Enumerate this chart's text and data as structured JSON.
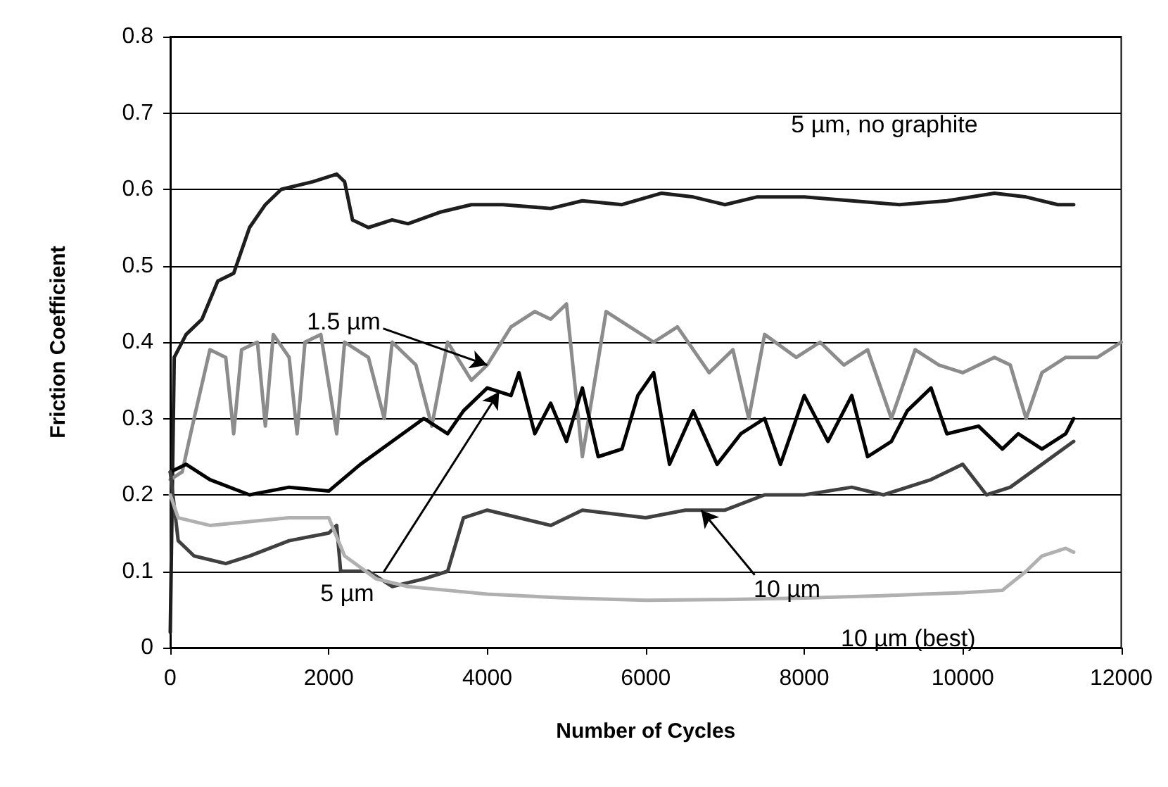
{
  "chart_data": {
    "type": "line",
    "xlabel": "Number of Cycles",
    "ylabel": "Friction Coefficient",
    "xlim": [
      0,
      12000
    ],
    "xticks": [
      0,
      2000,
      4000,
      6000,
      8000,
      10000,
      12000
    ],
    "ylim": [
      0,
      0.8
    ],
    "yticks": [
      0,
      0.1,
      0.2,
      0.3,
      0.4,
      0.5,
      0.6,
      0.7,
      0.8
    ],
    "grid": "y",
    "marker": "none",
    "line_style": "solid",
    "series": [
      {
        "color": "#1e1e1e",
        "x": [
          0,
          50,
          200,
          400,
          600,
          800,
          1000,
          1200,
          1400,
          1800,
          2100,
          2200,
          2300,
          2500,
          2800,
          3000,
          3400,
          3800,
          4200,
          4800,
          5200,
          5700,
          6200,
          6600,
          7000,
          7400,
          8000,
          8600,
          9200,
          9800,
          10400,
          10800,
          11200,
          11400
        ],
        "values": [
          0.02,
          0.38,
          0.41,
          0.43,
          0.48,
          0.49,
          0.55,
          0.58,
          0.6,
          0.61,
          0.62,
          0.61,
          0.56,
          0.55,
          0.56,
          0.555,
          0.57,
          0.58,
          0.58,
          0.575,
          0.585,
          0.58,
          0.595,
          0.59,
          0.58,
          0.59,
          0.59,
          0.585,
          0.58,
          0.585,
          0.595,
          0.59,
          0.58,
          0.58
        ]
      },
      {
        "color": "#8c8c8c",
        "x": [
          0,
          150,
          300,
          500,
          700,
          800,
          900,
          1100,
          1200,
          1300,
          1500,
          1600,
          1700,
          1900,
          2100,
          2200,
          2500,
          2700,
          2800,
          3100,
          3300,
          3500,
          3800,
          4000,
          4300,
          4600,
          4800,
          5000,
          5200,
          5500,
          5800,
          6100,
          6400,
          6800,
          7100,
          7300,
          7500,
          7900,
          8200,
          8500,
          8800,
          9100,
          9400,
          9700,
          10000,
          10400,
          10600,
          10800,
          11000,
          11300,
          11700,
          12000
        ],
        "values": [
          0.22,
          0.23,
          0.3,
          0.39,
          0.38,
          0.28,
          0.39,
          0.4,
          0.29,
          0.41,
          0.38,
          0.28,
          0.4,
          0.41,
          0.28,
          0.4,
          0.38,
          0.3,
          0.4,
          0.37,
          0.29,
          0.4,
          0.35,
          0.37,
          0.42,
          0.44,
          0.43,
          0.45,
          0.25,
          0.44,
          0.42,
          0.4,
          0.42,
          0.36,
          0.39,
          0.3,
          0.41,
          0.38,
          0.4,
          0.37,
          0.39,
          0.3,
          0.39,
          0.37,
          0.36,
          0.38,
          0.37,
          0.3,
          0.36,
          0.38,
          0.38,
          0.4
        ]
      },
      {
        "color": "#000000",
        "x": [
          0,
          200,
          500,
          1000,
          1500,
          2000,
          2400,
          2800,
          3200,
          3500,
          3700,
          4000,
          4300,
          4400,
          4600,
          4800,
          5000,
          5200,
          5400,
          5700,
          5900,
          6100,
          6300,
          6600,
          6900,
          7200,
          7500,
          7700,
          8000,
          8300,
          8600,
          8800,
          9100,
          9300,
          9600,
          9800,
          10200,
          10500,
          10700,
          11000,
          11300,
          11400
        ],
        "values": [
          0.23,
          0.24,
          0.22,
          0.2,
          0.21,
          0.205,
          0.24,
          0.27,
          0.3,
          0.28,
          0.31,
          0.34,
          0.33,
          0.36,
          0.28,
          0.32,
          0.27,
          0.34,
          0.25,
          0.26,
          0.33,
          0.36,
          0.24,
          0.31,
          0.24,
          0.28,
          0.3,
          0.24,
          0.33,
          0.27,
          0.33,
          0.25,
          0.27,
          0.31,
          0.34,
          0.28,
          0.29,
          0.26,
          0.28,
          0.26,
          0.28,
          0.3
        ]
      },
      {
        "color": "#404040",
        "x": [
          0,
          100,
          300,
          700,
          1000,
          1500,
          2000,
          2100,
          2150,
          2500,
          2800,
          3200,
          3500,
          3700,
          4000,
          4400,
          4800,
          5200,
          6000,
          6500,
          7000,
          7500,
          8000,
          8600,
          9000,
          9600,
          10000,
          10300,
          10600,
          11000,
          11400
        ],
        "values": [
          0.23,
          0.14,
          0.12,
          0.11,
          0.12,
          0.14,
          0.15,
          0.16,
          0.1,
          0.1,
          0.08,
          0.09,
          0.1,
          0.17,
          0.18,
          0.17,
          0.16,
          0.18,
          0.17,
          0.18,
          0.18,
          0.2,
          0.2,
          0.21,
          0.2,
          0.22,
          0.24,
          0.2,
          0.21,
          0.24,
          0.27
        ]
      },
      {
        "color": "#b0b0b0",
        "x": [
          0,
          100,
          500,
          1000,
          1500,
          2000,
          2200,
          2600,
          3000,
          3500,
          4000,
          5000,
          6000,
          7000,
          8000,
          9000,
          9500,
          10000,
          10500,
          10800,
          11000,
          11300,
          11400
        ],
        "values": [
          0.2,
          0.17,
          0.16,
          0.165,
          0.17,
          0.17,
          0.12,
          0.09,
          0.08,
          0.075,
          0.07,
          0.065,
          0.062,
          0.063,
          0.065,
          0.068,
          0.07,
          0.072,
          0.075,
          0.1,
          0.12,
          0.13,
          0.125
        ]
      }
    ],
    "annotations": [
      "5 µm, no graphite",
      {
        "text": "1.5 µm",
        "x": 4000,
        "y": 0.37
      },
      {
        "text": "5 µm",
        "x": 4150,
        "y": 0.335
      },
      {
        "text": "10 µm",
        "x": 6700,
        "y": 0.18
      },
      "10 µm (best)"
    ]
  }
}
